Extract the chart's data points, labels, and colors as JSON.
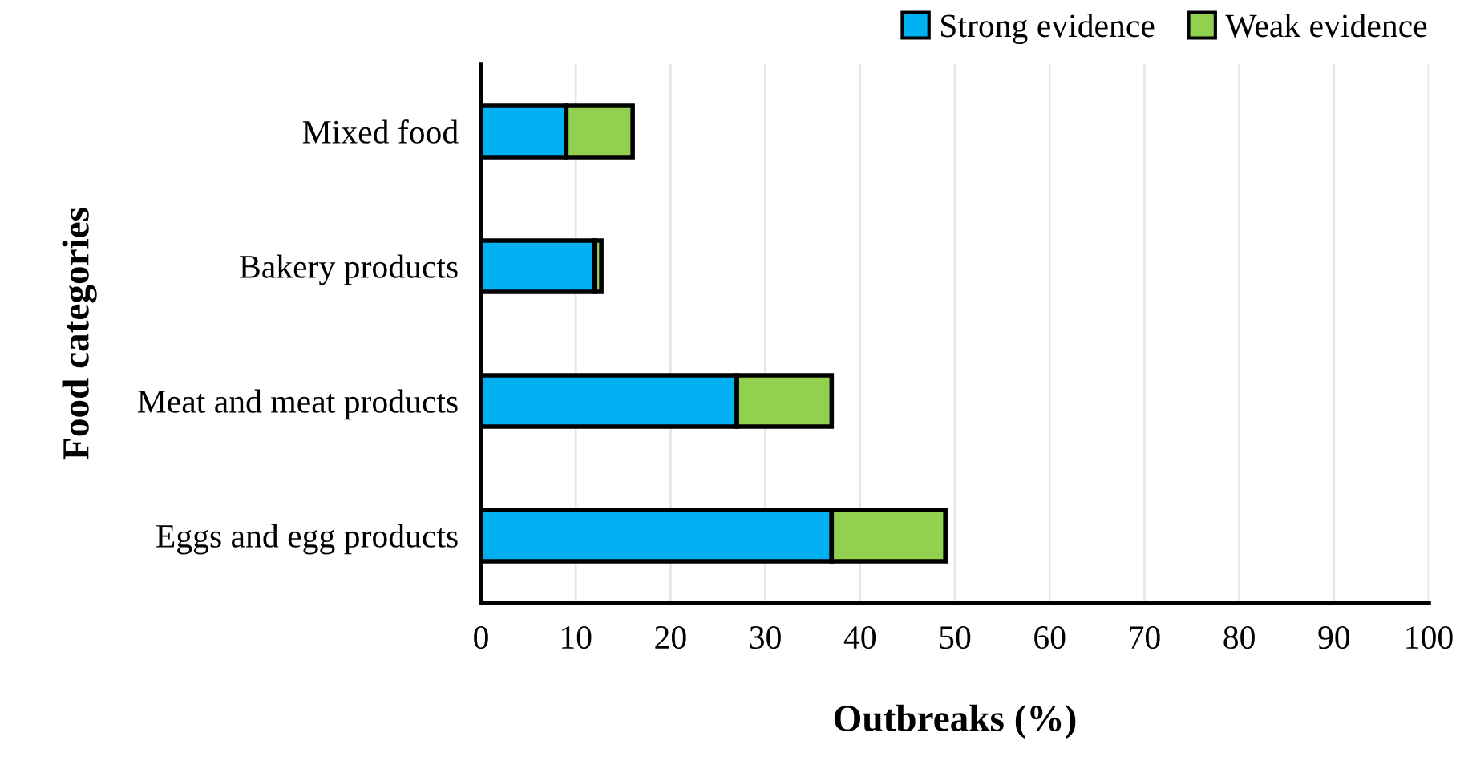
{
  "chart_data": {
    "type": "bar",
    "orientation": "horizontal",
    "stacked": true,
    "categories": [
      "Mixed food",
      "Bakery products",
      "Meat and meat products",
      "Eggs and egg products"
    ],
    "series": [
      {
        "name": "Strong evidence",
        "color": "#00b0f0",
        "values": [
          9,
          12,
          27,
          37
        ]
      },
      {
        "name": "Weak evidence",
        "color": "#92d050",
        "values": [
          7,
          0.7,
          10,
          12
        ]
      }
    ],
    "xlabel": "Outbreaks (%)",
    "ylabel": "Food categories",
    "xlim": [
      0,
      100
    ],
    "xticks": [
      0,
      10,
      20,
      30,
      40,
      50,
      60,
      70,
      80,
      90,
      100
    ],
    "grid": "x",
    "legend": "top right"
  }
}
